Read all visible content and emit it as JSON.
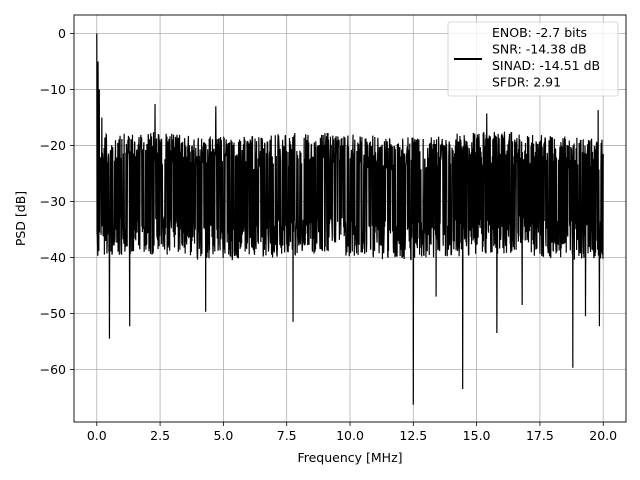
{
  "chart_data": {
    "type": "line",
    "title": "",
    "xlabel": "Frequency [MHz]",
    "ylabel": "PSD [dB]",
    "xlim": [
      -0.9,
      20.9
    ],
    "ylim": [
      -69.4,
      3.3
    ],
    "xticks": [
      0.0,
      2.5,
      5.0,
      7.5,
      10.0,
      12.5,
      15.0,
      17.5,
      20.0
    ],
    "xtick_labels": [
      "0.0",
      "2.5",
      "5.0",
      "7.5",
      "10.0",
      "12.5",
      "15.0",
      "17.5",
      "20.0"
    ],
    "yticks": [
      0,
      -10,
      -20,
      -30,
      -40,
      -50,
      -60
    ],
    "ytick_labels": [
      "0",
      "−10",
      "−20",
      "−30",
      "−40",
      "−50",
      "−60"
    ],
    "grid": true,
    "legend_position": "upper-right",
    "legend_lines": [
      "ENOB: -2.7 bits",
      "SNR: -14.38 dB",
      "SINAD: -14.51 dB",
      "SFDR: 2.91"
    ],
    "series": [
      {
        "color": "#000000",
        "description": "noisy power spectral density, mostly between -36 and -17 dB, with a peak at 0 MHz",
        "x_range": [
          0.0,
          20.0
        ],
        "points": 2000,
        "band_upper": -17,
        "band_lower": -36,
        "peaks": [
          [
            0.0,
            0.0
          ],
          [
            0.05,
            -5.0
          ],
          [
            0.1,
            -10.0
          ],
          [
            0.2,
            -15.0
          ]
        ],
        "dips": [
          [
            0.5,
            -54.5
          ],
          [
            1.3,
            -52.3
          ],
          [
            4.3,
            -49.7
          ],
          [
            7.75,
            -51.5
          ],
          [
            12.5,
            -66.3
          ],
          [
            13.4,
            -47.0
          ],
          [
            14.45,
            -63.5
          ],
          [
            15.8,
            -53.5
          ],
          [
            16.8,
            -48.5
          ],
          [
            18.8,
            -59.7
          ],
          [
            19.3,
            -50.5
          ],
          [
            19.85,
            -52.3
          ]
        ],
        "spikes": [
          [
            2.3,
            -12.6
          ],
          [
            4.7,
            -13.0
          ],
          [
            15.4,
            -14.3
          ],
          [
            19.8,
            -13.7
          ]
        ]
      }
    ]
  }
}
